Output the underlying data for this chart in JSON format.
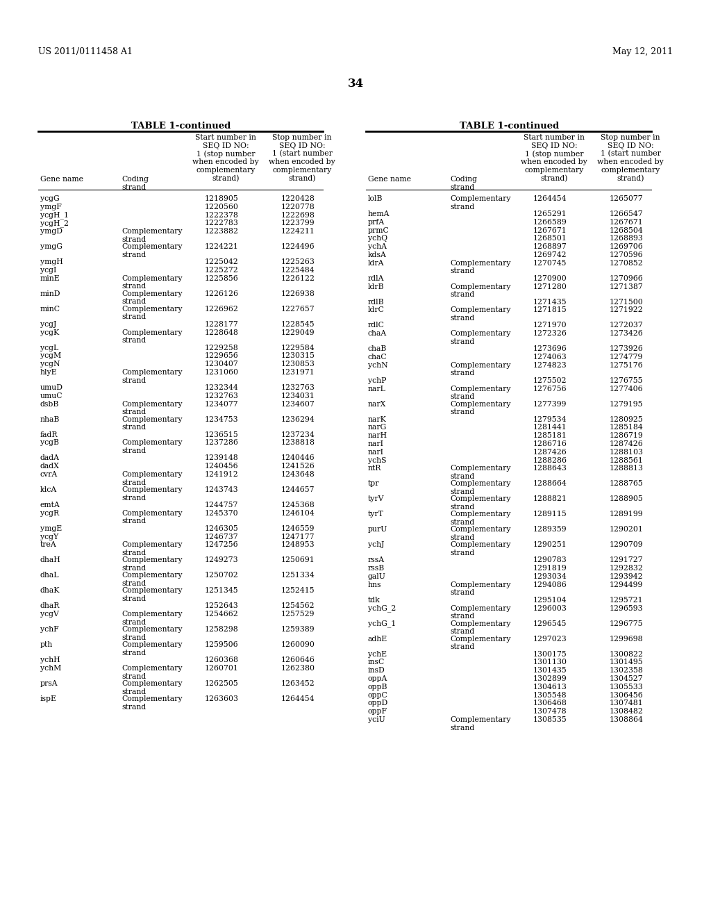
{
  "header_left": "US 2011/0111458 A1",
  "header_right": "May 12, 2011",
  "page_number": "34",
  "table_title": "TABLE 1-continued",
  "bg_color": "#ffffff",
  "text_color": "#000000",
  "left_table": [
    [
      "ycgG",
      "",
      "1218905",
      "1220428"
    ],
    [
      "ymgF",
      "",
      "1220560",
      "1220778"
    ],
    [
      "ycgH_1",
      "",
      "1222378",
      "1222698"
    ],
    [
      "ycgH_2",
      "",
      "1222783",
      "1223799"
    ],
    [
      "ymgD",
      "Complementary\nstrand",
      "1223882",
      "1224211"
    ],
    [
      "ymgG",
      "Complementary\nstrand",
      "1224221",
      "1224496"
    ],
    [
      "ymgH",
      "",
      "1225042",
      "1225263"
    ],
    [
      "ycgI",
      "",
      "1225272",
      "1225484"
    ],
    [
      "minE",
      "Complementary\nstrand",
      "1225856",
      "1226122"
    ],
    [
      "minD",
      "Complementary\nstrand",
      "1226126",
      "1226938"
    ],
    [
      "minC",
      "Complementary\nstrand",
      "1226962",
      "1227657"
    ],
    [
      "ycgJ",
      "",
      "1228177",
      "1228545"
    ],
    [
      "ycgK",
      "Complementary\nstrand",
      "1228648",
      "1229049"
    ],
    [
      "ycgL",
      "",
      "1229258",
      "1229584"
    ],
    [
      "ycgM",
      "",
      "1229656",
      "1230315"
    ],
    [
      "ycgN",
      "",
      "1230407",
      "1230853"
    ],
    [
      "hlyE",
      "Complementary\nstrand",
      "1231060",
      "1231971"
    ],
    [
      "umuD",
      "",
      "1232344",
      "1232763"
    ],
    [
      "umuC",
      "",
      "1232763",
      "1234031"
    ],
    [
      "dsbB",
      "Complementary\nstrand",
      "1234077",
      "1234607"
    ],
    [
      "nhaB",
      "Complementary\nstrand",
      "1234753",
      "1236294"
    ],
    [
      "fadR",
      "",
      "1236515",
      "1237234"
    ],
    [
      "ycgB",
      "Complementary\nstrand",
      "1237286",
      "1238818"
    ],
    [
      "dadA",
      "",
      "1239148",
      "1240446"
    ],
    [
      "dadX",
      "",
      "1240456",
      "1241526"
    ],
    [
      "cvrA",
      "Complementary\nstrand",
      "1241912",
      "1243648"
    ],
    [
      "ldcA",
      "Complementary\nstrand",
      "1243743",
      "1244657"
    ],
    [
      "emtA",
      "",
      "1244757",
      "1245368"
    ],
    [
      "ycgR",
      "Complementary\nstrand",
      "1245370",
      "1246104"
    ],
    [
      "ymgE",
      "",
      "1246305",
      "1246559"
    ],
    [
      "ycgY",
      "",
      "1246737",
      "1247177"
    ],
    [
      "treA",
      "Complementary\nstrand",
      "1247256",
      "1248953"
    ],
    [
      "dhaH",
      "Complementary\nstrand",
      "1249273",
      "1250691"
    ],
    [
      "dhaL",
      "Complementary\nstrand",
      "1250702",
      "1251334"
    ],
    [
      "dhaK",
      "Complementary\nstrand",
      "1251345",
      "1252415"
    ],
    [
      "dhaR",
      "",
      "1252643",
      "1254562"
    ],
    [
      "ycgV",
      "Complementary\nstrand",
      "1254662",
      "1257529"
    ],
    [
      "ychF",
      "Complementary\nstrand",
      "1258298",
      "1259389"
    ],
    [
      "pth",
      "Complementary\nstrand",
      "1259506",
      "1260090"
    ],
    [
      "ychH",
      "",
      "1260368",
      "1260646"
    ],
    [
      "ychM",
      "Complementary\nstrand",
      "1260701",
      "1262380"
    ],
    [
      "prsA",
      "Complementary\nstrand",
      "1262505",
      "1263452"
    ],
    [
      "ispE",
      "Complementary\nstrand",
      "1263603",
      "1264454"
    ]
  ],
  "right_table": [
    [
      "lolB",
      "Complementary\nstrand",
      "1264454",
      "1265077"
    ],
    [
      "hemA",
      "",
      "1265291",
      "1266547"
    ],
    [
      "prfA",
      "",
      "1266589",
      "1267671"
    ],
    [
      "prmC",
      "",
      "1267671",
      "1268504"
    ],
    [
      "ychQ",
      "",
      "1268501",
      "1268893"
    ],
    [
      "ychA",
      "",
      "1268897",
      "1269706"
    ],
    [
      "kdsA",
      "",
      "1269742",
      "1270596"
    ],
    [
      "ldrA",
      "Complementary\nstrand",
      "1270745",
      "1270852"
    ],
    [
      "rdlA",
      "",
      "1270900",
      "1270966"
    ],
    [
      "ldrB",
      "Complementary\nstrand",
      "1271280",
      "1271387"
    ],
    [
      "rdlB",
      "",
      "1271435",
      "1271500"
    ],
    [
      "ldrC",
      "Complementary\nstrand",
      "1271815",
      "1271922"
    ],
    [
      "rdlC",
      "",
      "1271970",
      "1272037"
    ],
    [
      "chaA",
      "Complementary\nstrand",
      "1272326",
      "1273426"
    ],
    [
      "chaB",
      "",
      "1273696",
      "1273926"
    ],
    [
      "chaC",
      "",
      "1274063",
      "1274779"
    ],
    [
      "ychN",
      "Complementary\nstrand",
      "1274823",
      "1275176"
    ],
    [
      "ychP",
      "",
      "1275502",
      "1276755"
    ],
    [
      "narL",
      "Complementary\nstrand",
      "1276756",
      "1277406"
    ],
    [
      "narX",
      "Complementary\nstrand",
      "1277399",
      "1279195"
    ],
    [
      "narK",
      "",
      "1279534",
      "1280925"
    ],
    [
      "narG",
      "",
      "1281441",
      "1285184"
    ],
    [
      "narH",
      "",
      "1285181",
      "1286719"
    ],
    [
      "narI",
      "",
      "1286716",
      "1287426"
    ],
    [
      "narI",
      "",
      "1287426",
      "1288103"
    ],
    [
      "ychS",
      "",
      "1288286",
      "1288561"
    ],
    [
      "ntR",
      "Complementary\nstrand",
      "1288643",
      "1288813"
    ],
    [
      "tpr",
      "Complementary\nstrand",
      "1288664",
      "1288765"
    ],
    [
      "tyrV",
      "Complementary\nstrand",
      "1288821",
      "1288905"
    ],
    [
      "tyrT",
      "Complementary\nstrand",
      "1289115",
      "1289199"
    ],
    [
      "purU",
      "Complementary\nstrand",
      "1289359",
      "1290201"
    ],
    [
      "ychJ",
      "Complementary\nstrand",
      "1290251",
      "1290709"
    ],
    [
      "rssA",
      "",
      "1290783",
      "1291727"
    ],
    [
      "rssB",
      "",
      "1291819",
      "1292832"
    ],
    [
      "galU",
      "",
      "1293034",
      "1293942"
    ],
    [
      "hns",
      "Complementary\nstrand",
      "1294086",
      "1294499"
    ],
    [
      "tdk",
      "",
      "1295104",
      "1295721"
    ],
    [
      "ychG_2",
      "Complementary\nstrand",
      "1296003",
      "1296593"
    ],
    [
      "ychG_1",
      "Complementary\nstrand",
      "1296545",
      "1296775"
    ],
    [
      "adhE",
      "Complementary\nstrand",
      "1297023",
      "1299698"
    ],
    [
      "ychE",
      "",
      "1300175",
      "1300822"
    ],
    [
      "insC",
      "",
      "1301130",
      "1301495"
    ],
    [
      "insD",
      "",
      "1301435",
      "1302358"
    ],
    [
      "oppA",
      "",
      "1302899",
      "1304527"
    ],
    [
      "oppB",
      "",
      "1304613",
      "1305533"
    ],
    [
      "oppC",
      "",
      "1305548",
      "1306456"
    ],
    [
      "oppD",
      "",
      "1306468",
      "1307481"
    ],
    [
      "oppF",
      "",
      "1307478",
      "1308482"
    ],
    [
      "yciU",
      "Complementary\nstrand",
      "1308535",
      "1308864"
    ]
  ]
}
